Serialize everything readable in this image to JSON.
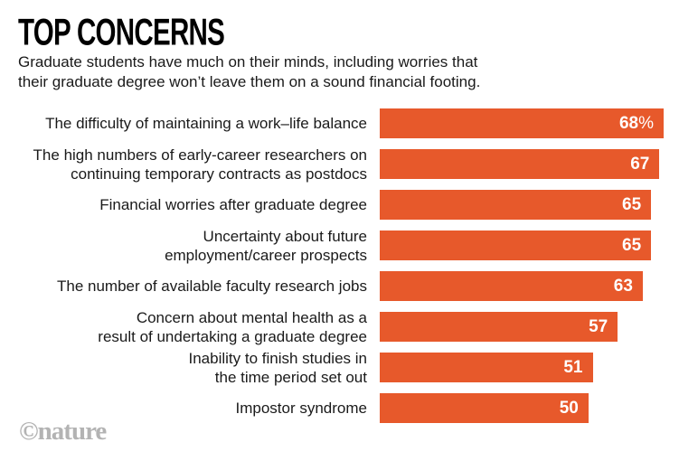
{
  "header": {
    "title": "TOP CONCERNS",
    "subtitle_line1": "Graduate students have much on their minds, including worries that",
    "subtitle_line2": "their graduate degree won’t leave them on a sound financial footing."
  },
  "chart_data": {
    "type": "bar",
    "orientation": "horizontal",
    "title": "TOP CONCERNS",
    "subtitle": "Graduate students have much on their minds, including worries that their graduate degree won’t leave them on a sound financial footing.",
    "unit": "%",
    "axis_max": 68,
    "grid": false,
    "legend": false,
    "bar_color": "#E7592B",
    "value_label_color": "#ffffff",
    "categories": [
      "The difficulty of maintaining a work–life balance",
      "The high numbers of early-career researchers on\ncontinuing temporary contracts as postdocs",
      "Financial worries after graduate degree",
      "Uncertainty about future\nemployment/career prospects",
      "The number of available faculty research jobs",
      "Concern about mental health as a\nresult of undertaking a graduate degree",
      "Inability to finish studies in\nthe time period set out",
      "Impostor syndrome"
    ],
    "values": [
      68,
      67,
      65,
      65,
      63,
      57,
      51,
      50
    ],
    "value_labels": [
      "68%",
      "67",
      "65",
      "65",
      "63",
      "57",
      "51",
      "50"
    ]
  },
  "footer": {
    "watermark": "©nature"
  },
  "colors": {
    "background": "#ffffff",
    "bar": "#E7592B",
    "title_text": "#000000",
    "body_text": "#1a1a1a",
    "watermark_text": "#b3b3b3"
  }
}
